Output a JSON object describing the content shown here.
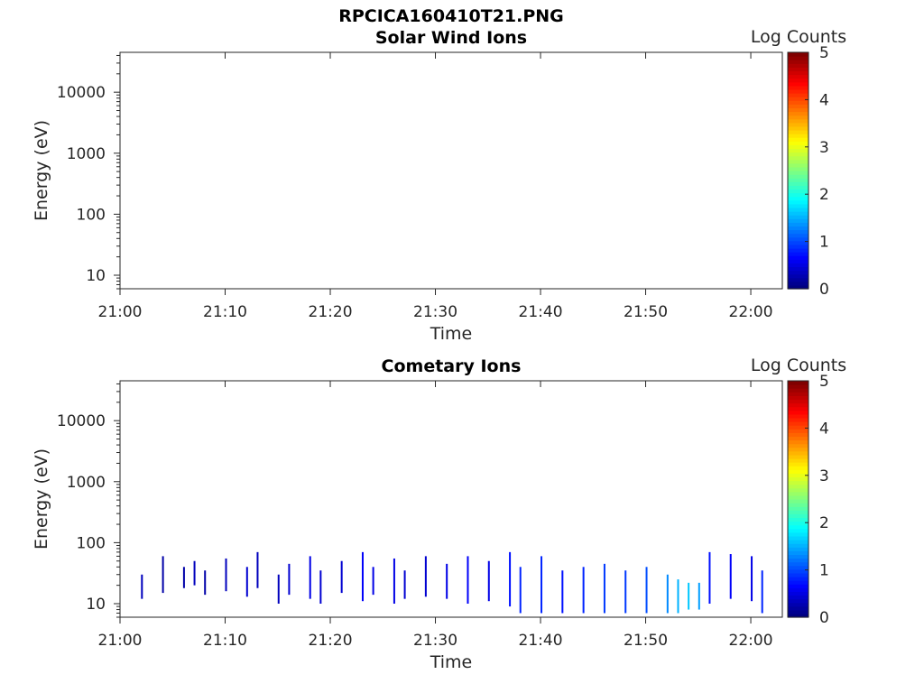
{
  "figure_title": "RPCICA160410T21.PNG",
  "colors": {
    "axis": "#262626",
    "background": "#ffffff",
    "colormap": "jet"
  },
  "chart_data": [
    {
      "type": "heatmap",
      "title": "Solar Wind Ions",
      "xlabel": "Time",
      "ylabel": "Energy (eV)",
      "x_ticks": [
        "21:00",
        "21:10",
        "21:20",
        "21:30",
        "21:40",
        "21:50",
        "22:00"
      ],
      "xlim": [
        "21:00",
        "22:03"
      ],
      "y_scale": "log",
      "y_ticks": [
        "10",
        "100",
        "1000",
        "10000"
      ],
      "ylim": [
        6,
        45000
      ],
      "colorbar": {
        "label": "Log Counts",
        "ticks": [
          "0",
          "1",
          "2",
          "3",
          "4",
          "5"
        ],
        "range": [
          0,
          5
        ]
      },
      "grid": false,
      "data_description": "empty",
      "points": []
    },
    {
      "type": "heatmap",
      "title": "Cometary Ions",
      "xlabel": "Time",
      "ylabel": "Energy (eV)",
      "x_ticks": [
        "21:00",
        "21:10",
        "21:20",
        "21:30",
        "21:40",
        "21:50",
        "22:00"
      ],
      "xlim": [
        "21:00",
        "22:03"
      ],
      "y_scale": "log",
      "y_ticks": [
        "10",
        "100",
        "1000",
        "10000"
      ],
      "ylim": [
        6,
        45000
      ],
      "colorbar": {
        "label": "Log Counts",
        "ticks": [
          "0",
          "1",
          "2",
          "3",
          "4",
          "5"
        ],
        "range": [
          0,
          5
        ]
      },
      "grid": false,
      "points": [
        {
          "time": "21:02",
          "e_low": 12,
          "e_high": 30,
          "log_counts": 0.3
        },
        {
          "time": "21:04",
          "e_low": 15,
          "e_high": 60,
          "log_counts": 0.2
        },
        {
          "time": "21:06",
          "e_low": 18,
          "e_high": 40,
          "log_counts": 0.2
        },
        {
          "time": "21:07",
          "e_low": 20,
          "e_high": 50,
          "log_counts": 0.3
        },
        {
          "time": "21:08",
          "e_low": 14,
          "e_high": 35,
          "log_counts": 0.2
        },
        {
          "time": "21:10",
          "e_low": 16,
          "e_high": 55,
          "log_counts": 0.3
        },
        {
          "time": "21:12",
          "e_low": 13,
          "e_high": 40,
          "log_counts": 0.4
        },
        {
          "time": "21:13",
          "e_low": 18,
          "e_high": 70,
          "log_counts": 0.3
        },
        {
          "time": "21:15",
          "e_low": 10,
          "e_high": 30,
          "log_counts": 0.3
        },
        {
          "time": "21:16",
          "e_low": 14,
          "e_high": 45,
          "log_counts": 0.4
        },
        {
          "time": "21:18",
          "e_low": 12,
          "e_high": 60,
          "log_counts": 0.5
        },
        {
          "time": "21:19",
          "e_low": 10,
          "e_high": 35,
          "log_counts": 0.4
        },
        {
          "time": "21:21",
          "e_low": 15,
          "e_high": 50,
          "log_counts": 0.4
        },
        {
          "time": "21:23",
          "e_low": 11,
          "e_high": 70,
          "log_counts": 0.6
        },
        {
          "time": "21:24",
          "e_low": 14,
          "e_high": 40,
          "log_counts": 0.5
        },
        {
          "time": "21:26",
          "e_low": 10,
          "e_high": 55,
          "log_counts": 0.5
        },
        {
          "time": "21:27",
          "e_low": 12,
          "e_high": 35,
          "log_counts": 0.4
        },
        {
          "time": "21:29",
          "e_low": 13,
          "e_high": 60,
          "log_counts": 0.4
        },
        {
          "time": "21:31",
          "e_low": 12,
          "e_high": 45,
          "log_counts": 0.5
        },
        {
          "time": "21:33",
          "e_low": 10,
          "e_high": 60,
          "log_counts": 0.6
        },
        {
          "time": "21:35",
          "e_low": 11,
          "e_high": 50,
          "log_counts": 0.5
        },
        {
          "time": "21:37",
          "e_low": 9,
          "e_high": 70,
          "log_counts": 0.7
        },
        {
          "time": "21:38",
          "e_low": 7,
          "e_high": 40,
          "log_counts": 0.8
        },
        {
          "time": "21:40",
          "e_low": 7,
          "e_high": 60,
          "log_counts": 0.8
        },
        {
          "time": "21:42",
          "e_low": 7,
          "e_high": 35,
          "log_counts": 0.7
        },
        {
          "time": "21:44",
          "e_low": 7,
          "e_high": 40,
          "log_counts": 0.8
        },
        {
          "time": "21:46",
          "e_low": 7,
          "e_high": 45,
          "log_counts": 0.9
        },
        {
          "time": "21:48",
          "e_low": 7,
          "e_high": 35,
          "log_counts": 0.9
        },
        {
          "time": "21:50",
          "e_low": 7,
          "e_high": 40,
          "log_counts": 1.0
        },
        {
          "time": "21:52",
          "e_low": 7,
          "e_high": 30,
          "log_counts": 1.3
        },
        {
          "time": "21:53",
          "e_low": 7,
          "e_high": 25,
          "log_counts": 1.5
        },
        {
          "time": "21:54",
          "e_low": 8,
          "e_high": 22,
          "log_counts": 1.6
        },
        {
          "time": "21:55",
          "e_low": 8,
          "e_high": 22,
          "log_counts": 1.4
        },
        {
          "time": "21:56",
          "e_low": 10,
          "e_high": 70,
          "log_counts": 0.7
        },
        {
          "time": "21:58",
          "e_low": 12,
          "e_high": 65,
          "log_counts": 0.6
        },
        {
          "time": "22:00",
          "e_low": 11,
          "e_high": 60,
          "log_counts": 0.5
        },
        {
          "time": "22:01",
          "e_low": 7,
          "e_high": 35,
          "log_counts": 0.8
        }
      ]
    }
  ]
}
